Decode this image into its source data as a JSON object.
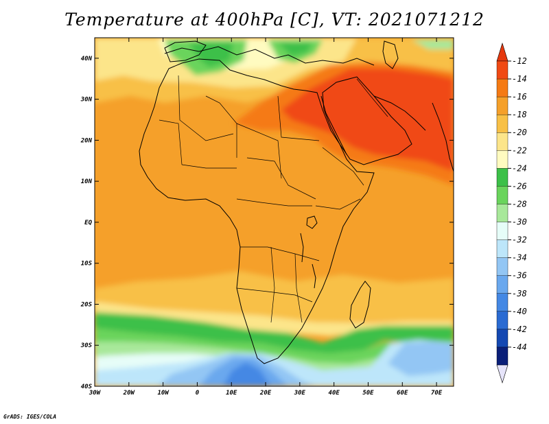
{
  "title": "Temperature at 400hPa [C], VT: 2021071212",
  "credit": "GrADS: IGES/COLA",
  "map": {
    "projection": "lat-lon",
    "lon_range": [
      -30,
      75
    ],
    "lat_range": [
      -40,
      45
    ],
    "lon_ticks": [
      {
        "value": -30,
        "label": "30W"
      },
      {
        "value": -20,
        "label": "20W"
      },
      {
        "value": -10,
        "label": "10W"
      },
      {
        "value": 0,
        "label": "0"
      },
      {
        "value": 10,
        "label": "10E"
      },
      {
        "value": 20,
        "label": "20E"
      },
      {
        "value": 30,
        "label": "30E"
      },
      {
        "value": 40,
        "label": "40E"
      },
      {
        "value": 50,
        "label": "50E"
      },
      {
        "value": 60,
        "label": "60E"
      },
      {
        "value": 70,
        "label": "70E"
      }
    ],
    "lat_ticks": [
      {
        "value": 40,
        "label": "40N"
      },
      {
        "value": 30,
        "label": "30N"
      },
      {
        "value": 20,
        "label": "20N"
      },
      {
        "value": 10,
        "label": "10N"
      },
      {
        "value": 0,
        "label": "EQ"
      },
      {
        "value": -10,
        "label": "10S"
      },
      {
        "value": -20,
        "label": "20S"
      },
      {
        "value": -30,
        "label": "30S"
      },
      {
        "value": -40,
        "label": "40S"
      }
    ],
    "background_color": "#f5a02a"
  },
  "colorbar": {
    "levels": [
      "-12",
      "-14",
      "-16",
      "-18",
      "-20",
      "-22",
      "-24",
      "-26",
      "-28",
      "-30",
      "-32",
      "-34",
      "-36",
      "-38",
      "-40",
      "-42",
      "-44"
    ],
    "colors": [
      "#f04a14",
      "#f57a14",
      "#f5a02a",
      "#f8c046",
      "#fce58a",
      "#fffbc0",
      "#3cc048",
      "#6ad45c",
      "#a8e89a",
      "#e6fdf8",
      "#bde6fa",
      "#93c6f4",
      "#6aa8ee",
      "#4488e4",
      "#2a6bd2",
      "#1448b2",
      "#0a1f78"
    ],
    "top_arrow_color": "#e5380e",
    "bottom_arrow_color": "#e6e4fa"
  }
}
